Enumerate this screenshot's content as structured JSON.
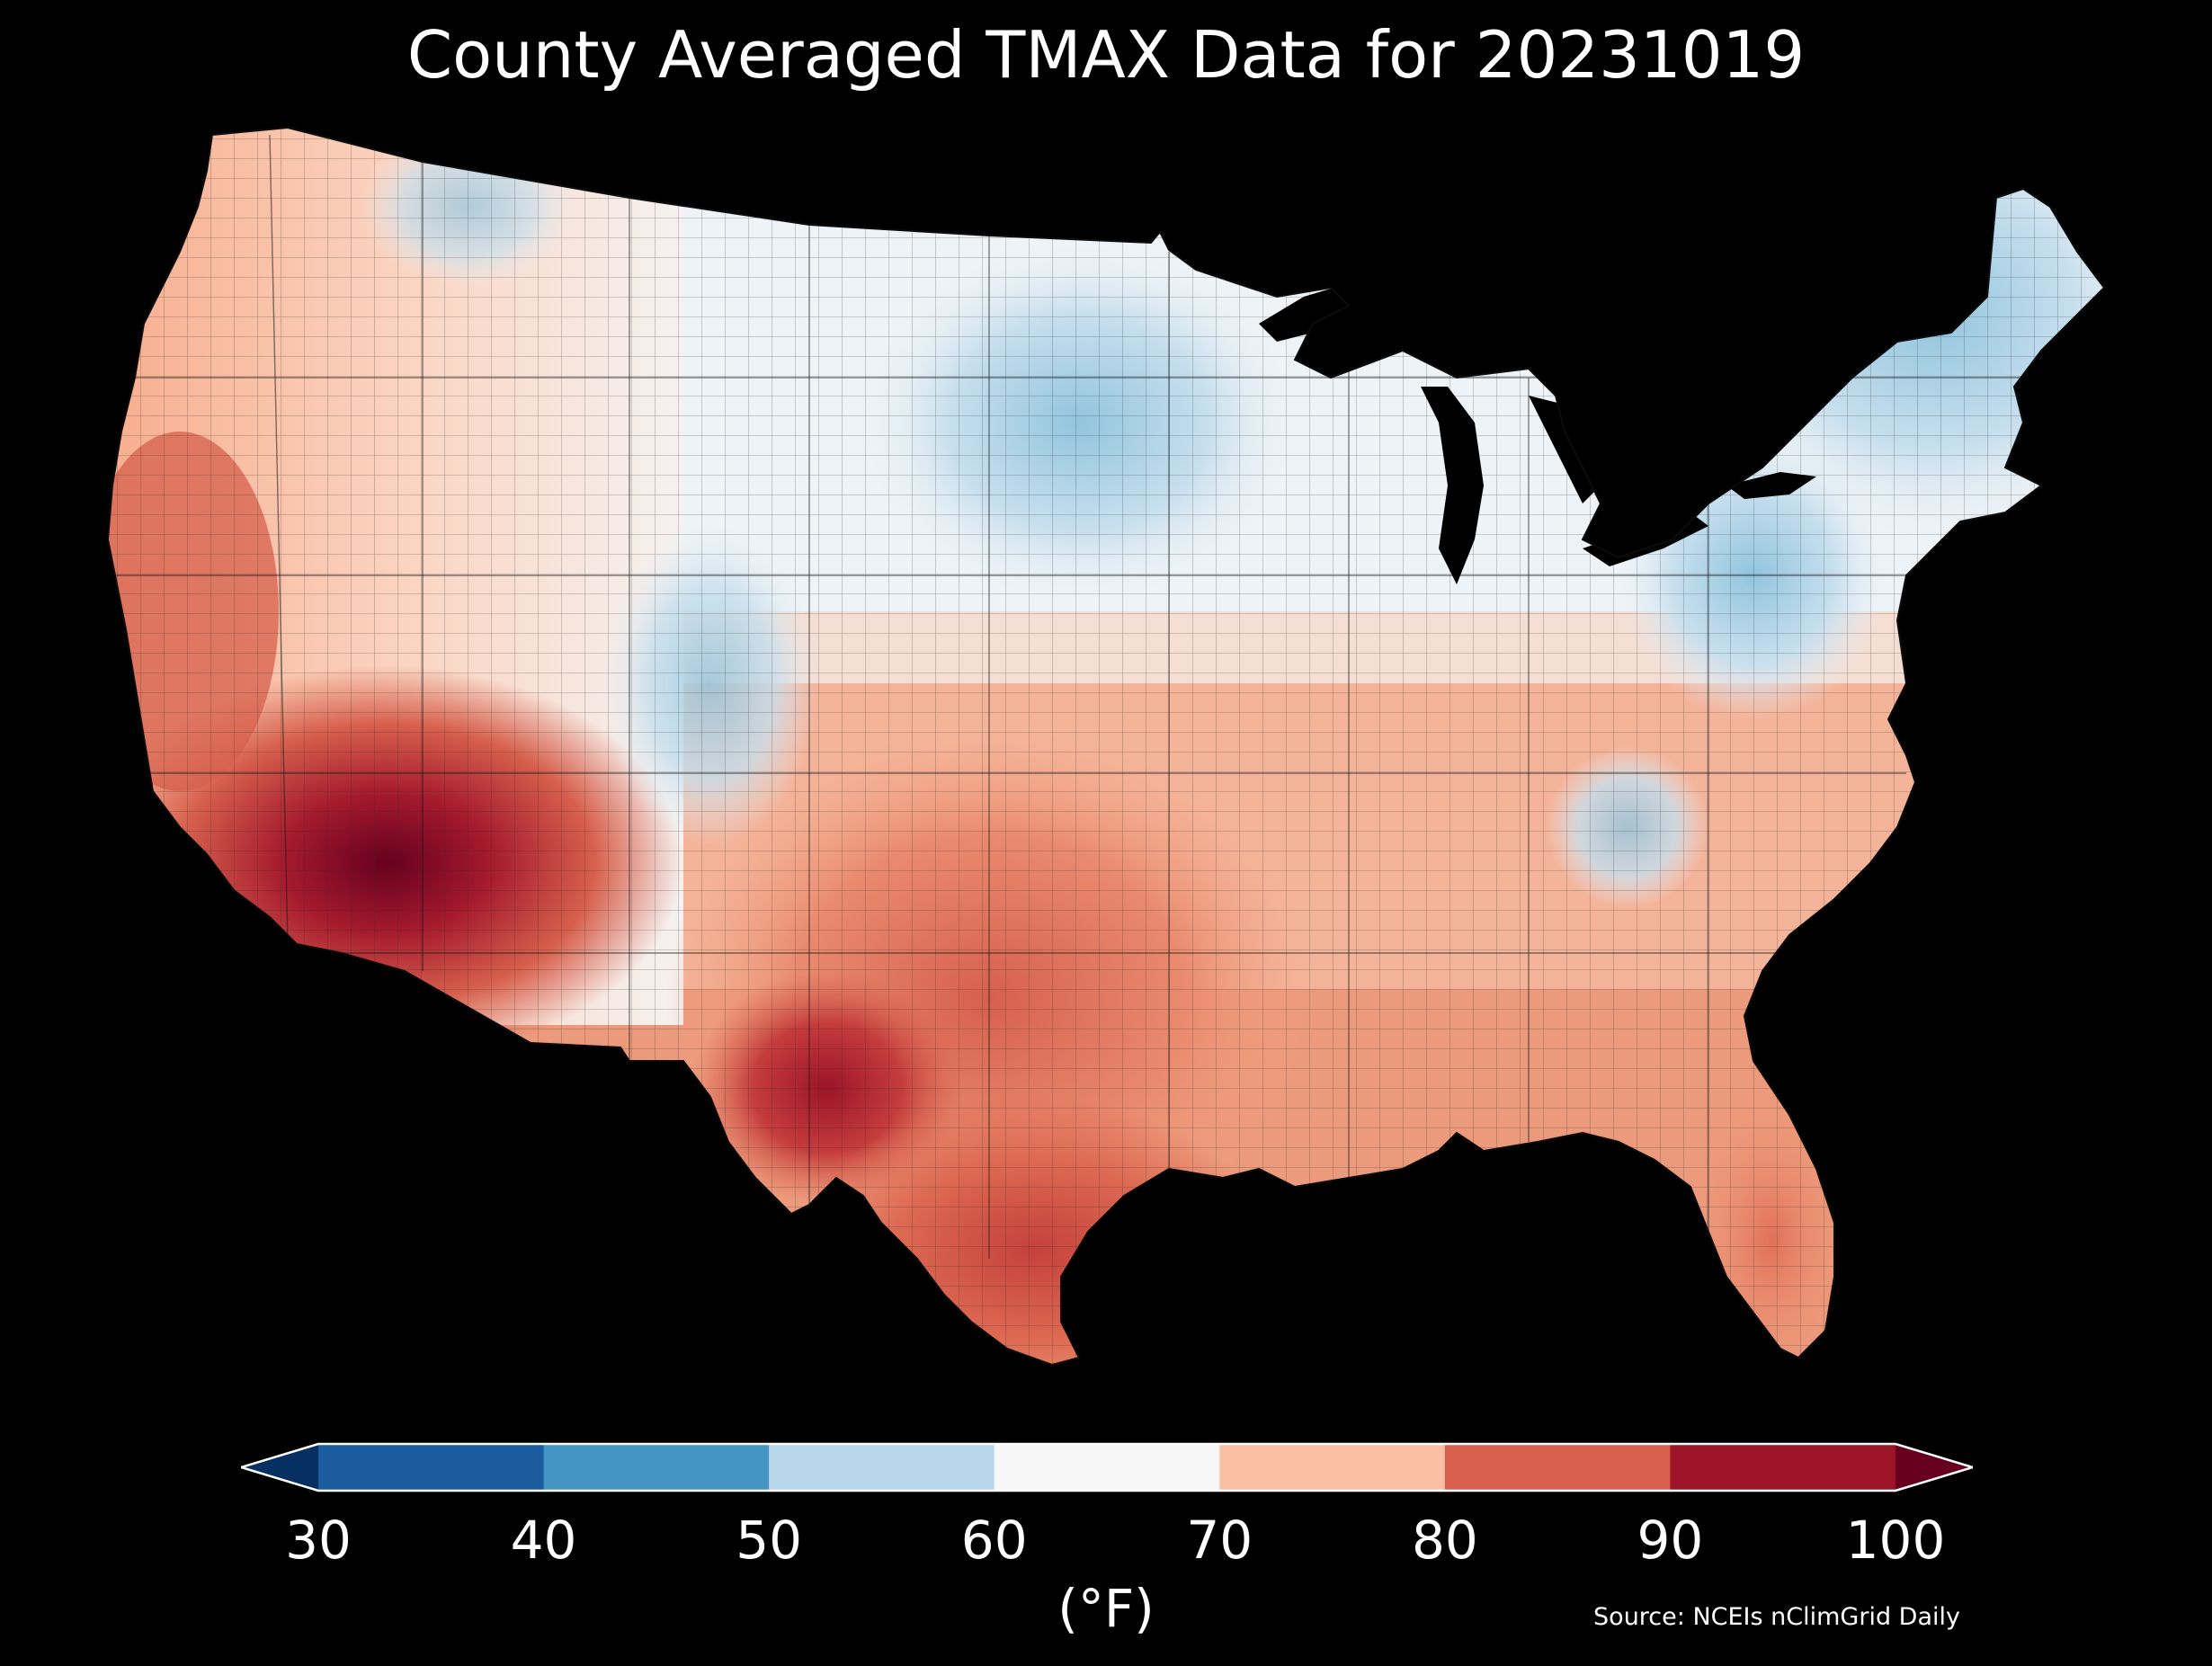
{
  "title": "County Averaged TMAX Data for 20231019",
  "colorbar": {
    "ticks": [
      "30",
      "40",
      "50",
      "60",
      "70",
      "80",
      "90",
      "100"
    ],
    "units": "(°F)",
    "colors": [
      "#053061",
      "#1a5c9e",
      "#4393c3",
      "#b8d8ea",
      "#f7f7f7",
      "#f9c0a4",
      "#d6604d",
      "#9b1428",
      "#67001f"
    ]
  },
  "source": "Source: NCEIs nClimGrid Daily",
  "map_colors": {
    "background": "#000000",
    "lakes": "#000000",
    "border": "#1a1a1a"
  }
}
